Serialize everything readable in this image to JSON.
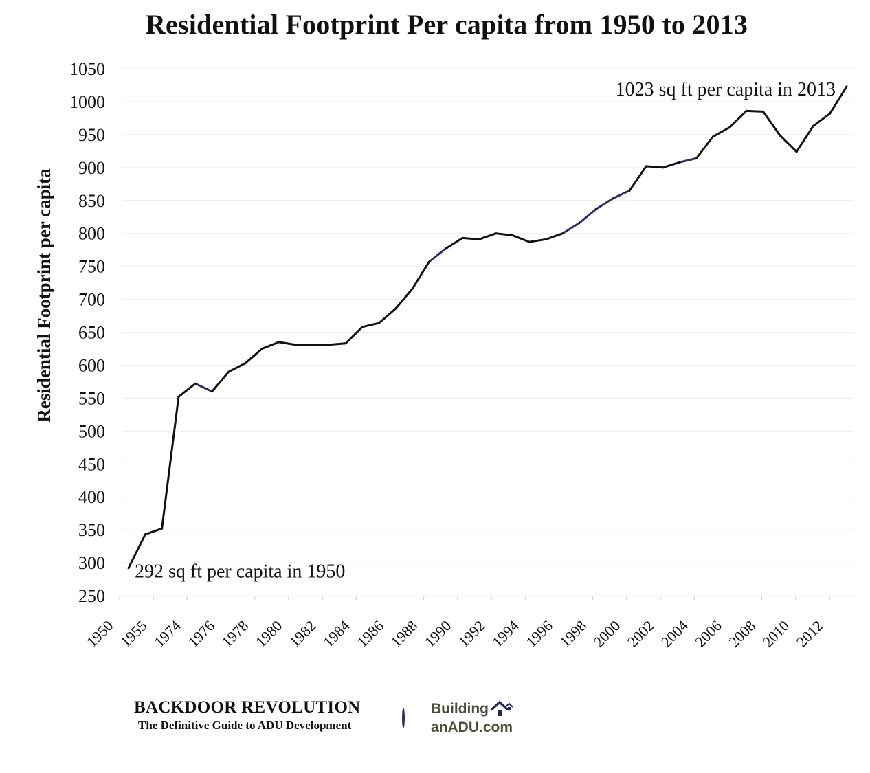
{
  "chart_data": {
    "type": "line",
    "title": "Residential Footprint Per capita from 1950 to 2013",
    "xlabel": "",
    "ylabel": "Residential Footprint per capita",
    "ylim": [
      250,
      1050
    ],
    "yticks": [
      250,
      300,
      350,
      400,
      450,
      500,
      550,
      600,
      650,
      700,
      750,
      800,
      850,
      900,
      950,
      1000,
      1050
    ],
    "xtick_labels": [
      "1950",
      "1955",
      "1974",
      "1976",
      "1978",
      "1980",
      "1982",
      "1984",
      "1986",
      "1988",
      "1990",
      "1992",
      "1994",
      "1996",
      "1998",
      "2000",
      "2002",
      "2004",
      "2006",
      "2008",
      "2010",
      "2012"
    ],
    "grid": "horizontal",
    "line_color": "#111111",
    "accent_segment_color": "#2b2f6b",
    "series": [
      {
        "x": [
          "1950",
          "1955",
          "1960",
          "1970",
          "1974",
          "1975",
          "1976",
          "1977",
          "1978",
          "1979",
          "1980",
          "1981",
          "1982",
          "1983",
          "1984",
          "1985",
          "1986",
          "1987",
          "1988",
          "1989",
          "1990",
          "1991",
          "1992",
          "1993",
          "1994",
          "1995",
          "1996",
          "1997",
          "1998",
          "1999",
          "2000",
          "2001",
          "2002",
          "2003",
          "2004",
          "2005",
          "2006",
          "2007",
          "2008",
          "2009",
          "2010",
          "2011",
          "2012",
          "2013"
        ],
        "values": [
          292,
          343,
          352,
          552,
          572,
          560,
          590,
          603,
          625,
          635,
          631,
          631,
          631,
          633,
          658,
          664,
          686,
          716,
          757,
          777,
          793,
          791,
          800,
          797,
          787,
          791,
          800,
          816,
          837,
          853,
          865,
          902,
          900,
          908,
          914,
          947,
          961,
          986,
          985,
          949,
          924,
          963,
          982,
          1023
        ]
      }
    ],
    "annotations": [
      {
        "text": "292 sq ft per capita in 1950",
        "x": "1950",
        "y": 292
      },
      {
        "text": "1023 sq ft per capita in 2013",
        "x": "2013",
        "y": 1023
      }
    ]
  },
  "footer": {
    "brand_name": "BACKDOOR REVOLUTION",
    "brand_tagline": "The Definitive Guide to ADU Development",
    "partner_line1": "Building",
    "partner_line2": "anADU.com",
    "partner_icon": "house-icon"
  }
}
